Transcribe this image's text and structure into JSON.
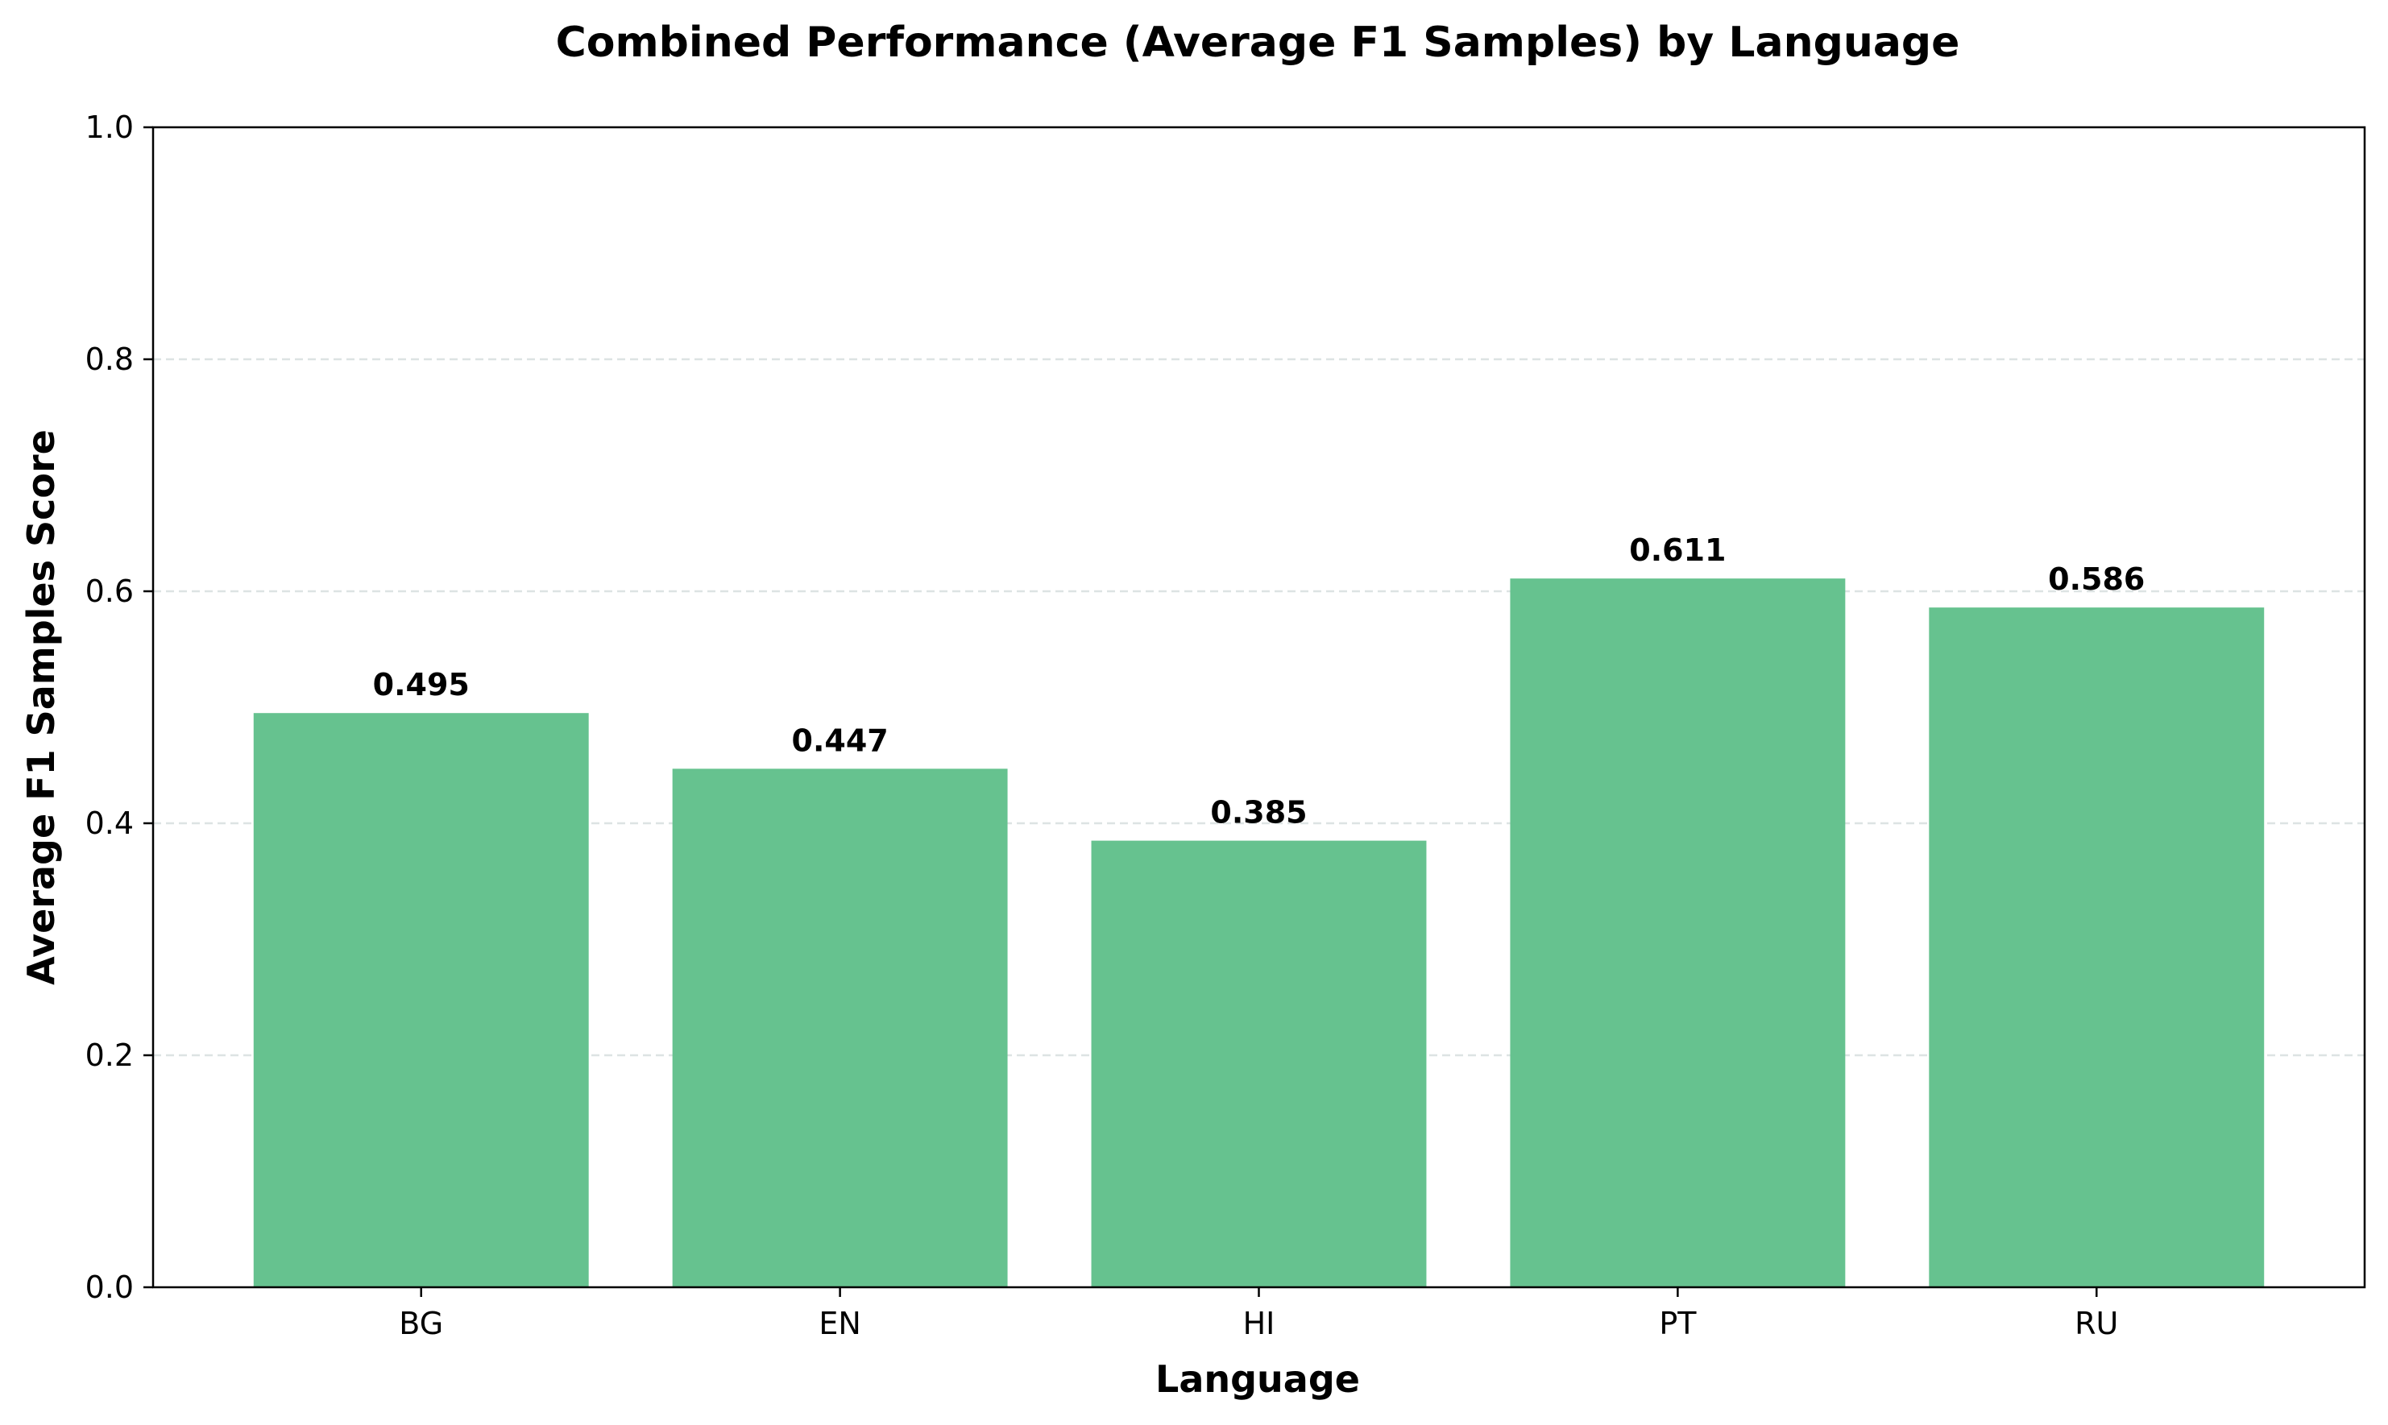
{
  "chart_data": {
    "type": "bar",
    "title": "Combined Performance (Average F1 Samples) by Language",
    "xlabel": "Language",
    "ylabel": "Average F1 Samples Score",
    "categories": [
      "BG",
      "EN",
      "HI",
      "PT",
      "RU"
    ],
    "values": [
      0.495,
      0.447,
      0.385,
      0.611,
      0.586
    ],
    "value_labels": [
      "0.495",
      "0.447",
      "0.385",
      "0.611",
      "0.586"
    ],
    "ylim": [
      0,
      1.0
    ],
    "yticks": [
      0.0,
      0.2,
      0.4,
      0.6,
      0.8,
      1.0
    ],
    "ytick_labels": [
      "0.0",
      "0.2",
      "0.4",
      "0.6",
      "0.8",
      "1.0"
    ],
    "grid": "y-dashed",
    "legend": "none",
    "colors": {
      "bar": "#66c28f",
      "grid": "#dde3e3",
      "axis": "#000000"
    }
  }
}
